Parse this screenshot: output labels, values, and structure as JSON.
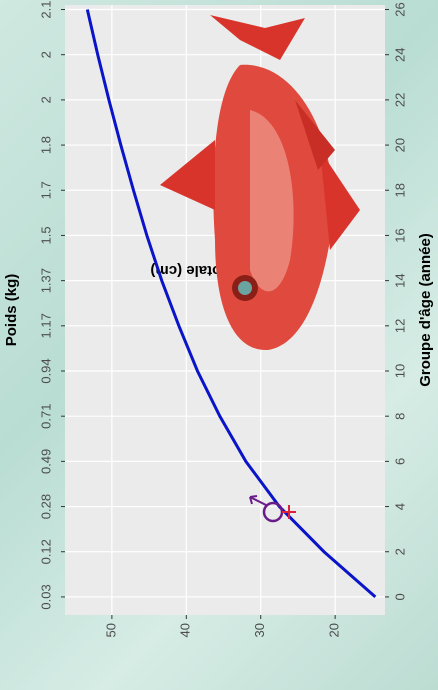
{
  "chart_data": {
    "type": "line",
    "x_label": "Groupe d'âge (année)",
    "y_label": "Longueur totale (cm)",
    "x2_label": "Poids (kg)",
    "x": [
      0,
      2,
      4,
      6,
      8,
      10,
      12,
      14,
      16,
      18,
      20,
      22,
      24,
      26
    ],
    "series": [
      {
        "color": "#0a14c8",
        "values": [
          14.6,
          21.5,
          27.5,
          32,
          35.5,
          38.5,
          41,
          43.3,
          45.3,
          47.1,
          48.8,
          50.4,
          51.9,
          53.3
        ]
      }
    ],
    "x2_labels": [
      0.03,
      0.12,
      0.28,
      0.49,
      0.71,
      0.94,
      1.17,
      1.37,
      1.5,
      1.7,
      1.8,
      2,
      2,
      2.1
    ],
    "xlim": [
      -0.8,
      26.2
    ],
    "xticks": [
      0,
      2,
      4,
      6,
      8,
      10,
      12,
      14,
      16,
      18,
      20,
      22,
      24,
      26
    ],
    "ylim": [
      13.3,
      56.3
    ],
    "yticks": [
      20,
      30,
      40,
      50
    ],
    "grid": true
  }
}
